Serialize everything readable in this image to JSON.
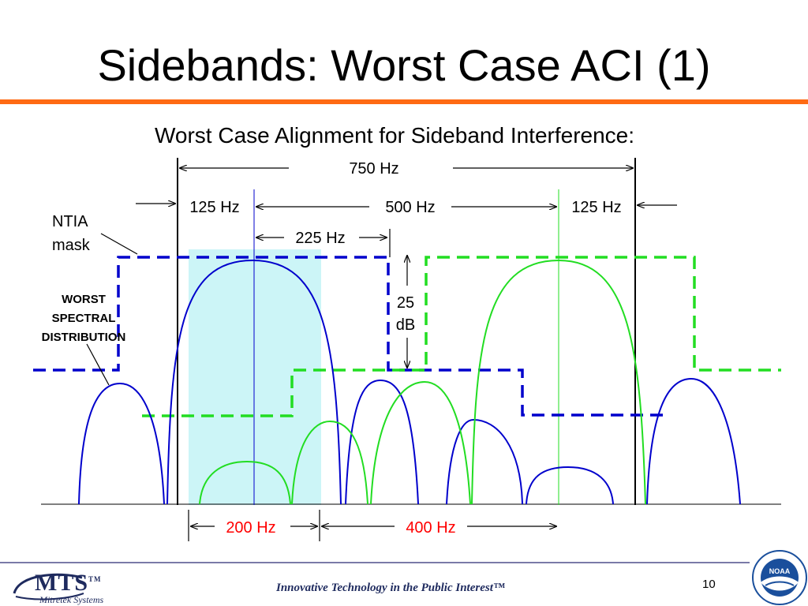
{
  "title": "Sidebands: Worst Case ACI (1)",
  "subtitle": "Worst Case Alignment for Sideband Interference:",
  "labels": {
    "span_750": "750 Hz",
    "left_125": "125 Hz",
    "mid_500": "500 Hz",
    "right_125": "125 Hz",
    "span_225": "225 Hz",
    "db_value": "25",
    "db_unit": "dB",
    "ntia_line1": "NTIA",
    "ntia_line2": "mask",
    "worst_line1": "WORST",
    "worst_line2": "SPECTRAL",
    "worst_line3": "DISTRIBUTION",
    "bottom_200": "200 Hz",
    "bottom_400": "400 Hz"
  },
  "colors": {
    "accent_rule": "#ff6a13",
    "blue_signal": "#0000cc",
    "green_signal": "#22dd22",
    "highlight_band": "#ccf5f7",
    "red_label": "#ff0000"
  },
  "footer": {
    "logo_text": "MTS",
    "logo_tm": "TM",
    "logo_subtext": "Mitretek Systems",
    "tagline": "Innovative Technology in the Public Interest™",
    "page_number": "10",
    "seal_text": "NOAA"
  }
}
